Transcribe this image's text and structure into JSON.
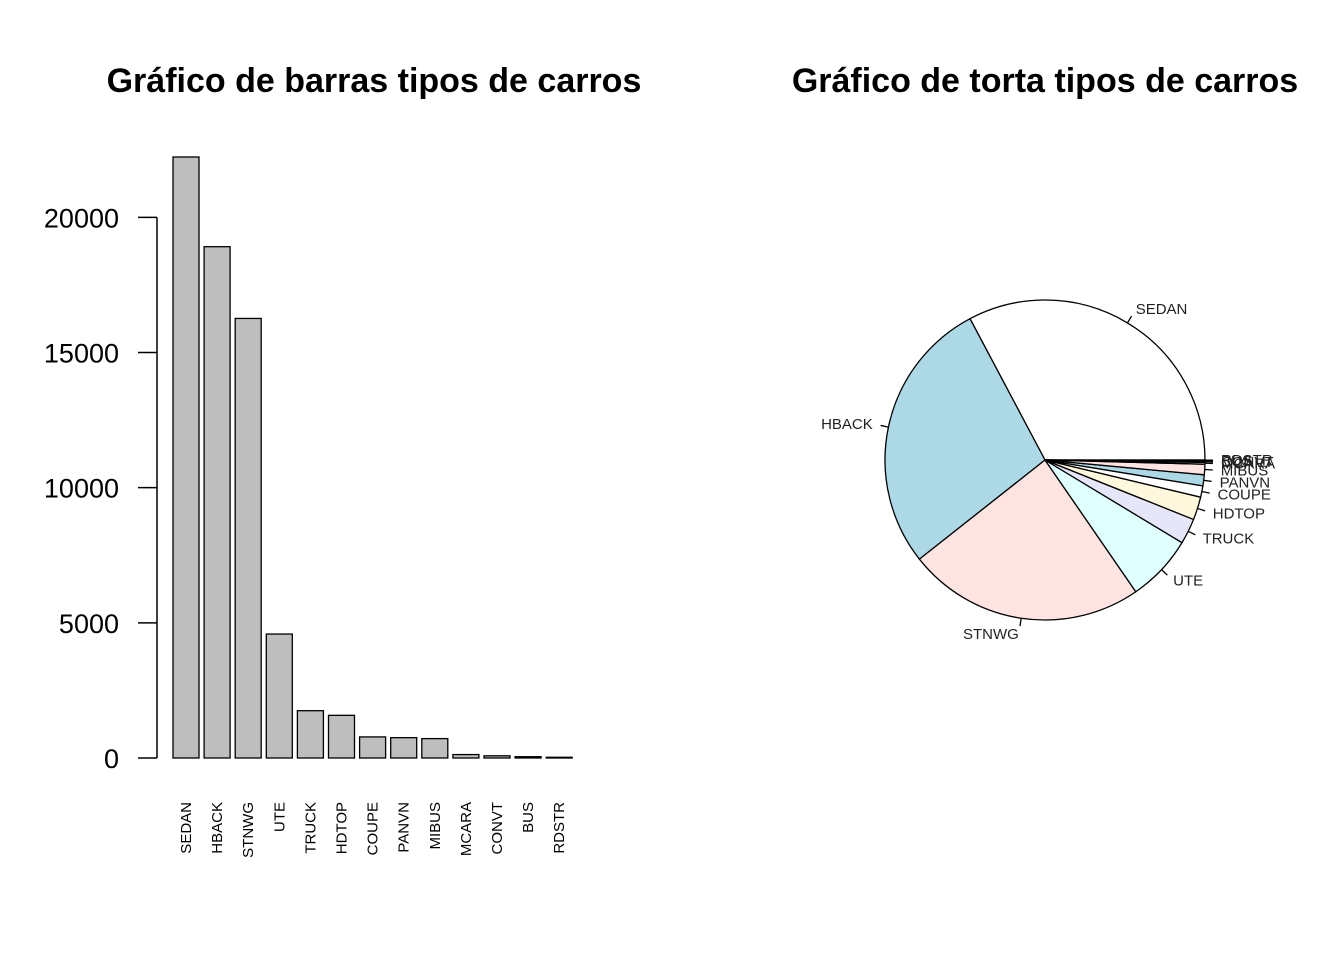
{
  "chart_data": [
    {
      "type": "bar",
      "title": "Gráfico de barras tipos de carros",
      "categories": [
        "SEDAN",
        "HBACK",
        "STNWG",
        "UTE",
        "TRUCK",
        "HDTOP",
        "COUPE",
        "PANVN",
        "MIBUS",
        "MCARA",
        "CONVT",
        "BUS",
        "RDSTR"
      ],
      "values": [
        22233,
        18915,
        16261,
        4586,
        1750,
        1579,
        780,
        752,
        717,
        127,
        81,
        48,
        27
      ],
      "yticks": [
        0,
        5000,
        10000,
        15000,
        20000
      ],
      "ylim": [
        0,
        22233
      ],
      "bar_color": "#bebebe",
      "grid": false
    },
    {
      "type": "pie",
      "title": "Gráfico de torta tipos de carros",
      "labels": [
        "SEDAN",
        "HBACK",
        "STNWG",
        "UTE",
        "TRUCK",
        "HDTOP",
        "COUPE",
        "PANVN",
        "MIBUS",
        "MCARA",
        "CONVT",
        "BUS",
        "RDSTR"
      ],
      "values": [
        22233,
        18915,
        16261,
        4586,
        1750,
        1579,
        780,
        752,
        717,
        127,
        81,
        48,
        27
      ],
      "colors": [
        "#ffffff",
        "#add8e6",
        "#ffe4e1",
        "#e0ffff",
        "#e6e6fa",
        "#fff8dc",
        "#ffffff",
        "#add8e6",
        "#ffe4e1",
        "#e0ffff",
        "#e6e6fa",
        "#fff8dc",
        "#ffffff"
      ]
    }
  ]
}
